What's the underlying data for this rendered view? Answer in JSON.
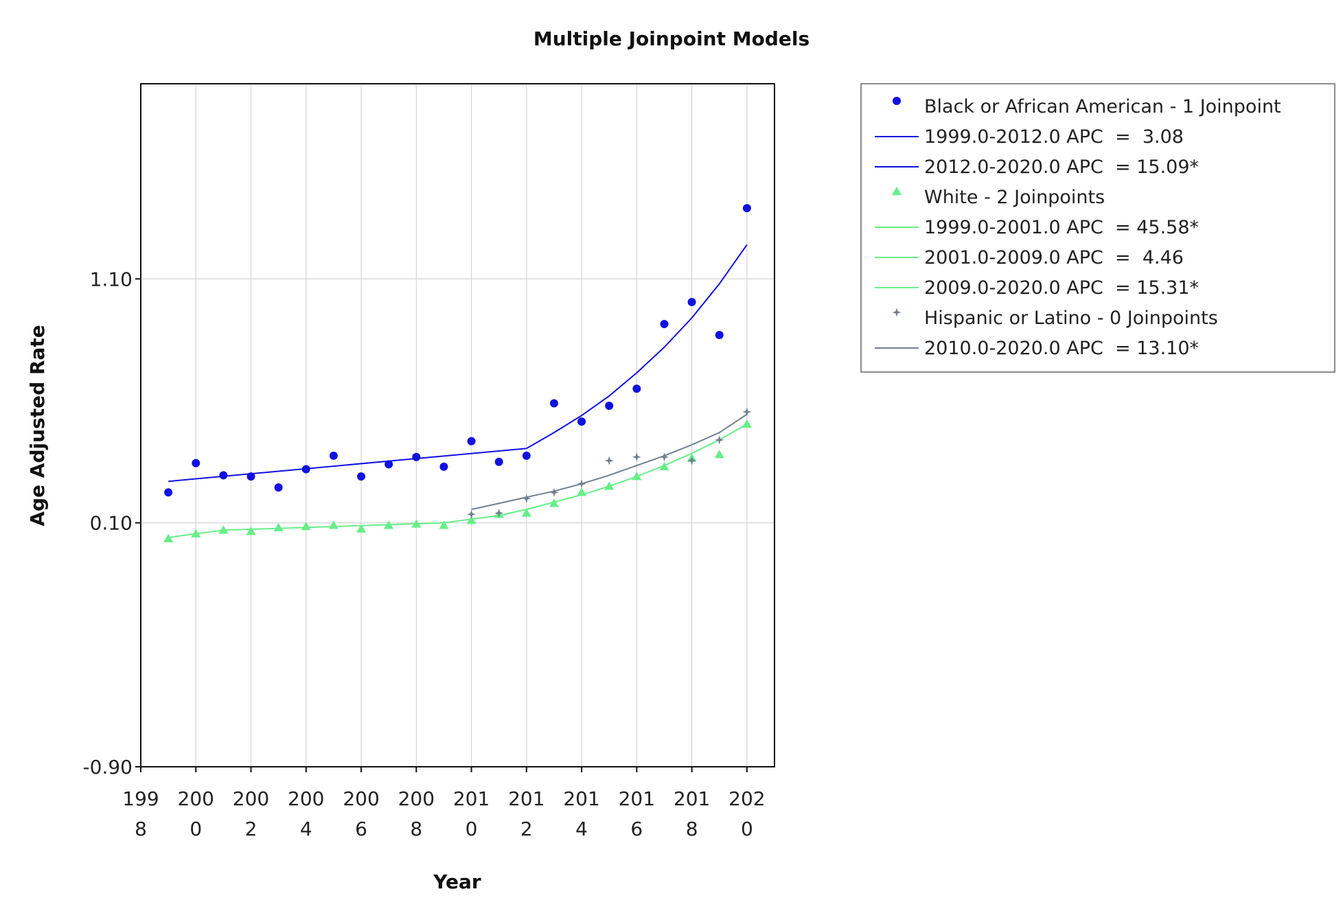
{
  "chart_data": {
    "type": "scatter",
    "title": "Multiple Joinpoint Models",
    "xlabel": "Year",
    "ylabel": "Age Adjusted Rate",
    "xlim": [
      1998,
      2021
    ],
    "ylim": [
      -0.9,
      1.9
    ],
    "x_ticks": [
      {
        "value": 1998,
        "line1": "199",
        "line2": "8"
      },
      {
        "value": 2000,
        "line1": "200",
        "line2": "0"
      },
      {
        "value": 2002,
        "line1": "200",
        "line2": "2"
      },
      {
        "value": 2004,
        "line1": "200",
        "line2": "4"
      },
      {
        "value": 2006,
        "line1": "200",
        "line2": "6"
      },
      {
        "value": 2008,
        "line1": "200",
        "line2": "8"
      },
      {
        "value": 2010,
        "line1": "201",
        "line2": "0"
      },
      {
        "value": 2012,
        "line1": "201",
        "line2": "2"
      },
      {
        "value": 2014,
        "line1": "201",
        "line2": "4"
      },
      {
        "value": 2016,
        "line1": "201",
        "line2": "6"
      },
      {
        "value": 2018,
        "line1": "201",
        "line2": "8"
      },
      {
        "value": 2020,
        "line1": "202",
        "line2": "0"
      }
    ],
    "y_ticks": [
      {
        "value": -0.9,
        "label": "-0.90"
      },
      {
        "value": 0.1,
        "label": "0.10"
      },
      {
        "value": 1.1,
        "label": "1.10"
      }
    ],
    "grid": true,
    "legend_position": "right",
    "series": [
      {
        "name": "Black or African American - 1 Joinpoint",
        "marker": "circle",
        "color": "#1010e0",
        "x": [
          1999,
          2000,
          2001,
          2002,
          2003,
          2004,
          2005,
          2006,
          2007,
          2008,
          2009,
          2010,
          2011,
          2012,
          2013,
          2014,
          2015,
          2016,
          2017,
          2018,
          2019,
          2020
        ],
        "y": [
          0.225,
          0.345,
          0.295,
          0.29,
          0.245,
          0.32,
          0.375,
          0.29,
          0.34,
          0.37,
          0.33,
          0.435,
          0.35,
          0.375,
          0.59,
          0.515,
          0.58,
          0.65,
          0.915,
          1.005,
          0.87,
          1.39
        ]
      },
      {
        "name": "White - 2 Joinpoints",
        "marker": "triangle",
        "color": "#66ee88",
        "x": [
          1999,
          2000,
          2001,
          2002,
          2003,
          2004,
          2005,
          2006,
          2007,
          2008,
          2009,
          2010,
          2011,
          2012,
          2013,
          2014,
          2015,
          2016,
          2017,
          2018,
          2019,
          2020
        ],
        "y": [
          0.035,
          0.055,
          0.07,
          0.065,
          0.08,
          0.085,
          0.09,
          0.075,
          0.09,
          0.095,
          0.09,
          0.11,
          0.135,
          0.14,
          0.18,
          0.225,
          0.25,
          0.29,
          0.33,
          0.365,
          0.38,
          0.505
        ]
      },
      {
        "name": "Hispanic or Latino - 0 Joinpoints",
        "marker": "star",
        "color": "#708090",
        "x": [
          2010,
          2011,
          2012,
          2013,
          2014,
          2015,
          2016,
          2017,
          2018,
          2019,
          2020
        ],
        "y": [
          0.135,
          0.14,
          0.2,
          0.225,
          0.26,
          0.355,
          0.37,
          0.37,
          0.355,
          0.44,
          0.555
        ]
      }
    ],
    "fitted_lines": [
      {
        "name": "1999.0-2012.0 APC  =  3.08",
        "color": "#1010e0",
        "x": [
          1999,
          2012
        ],
        "y": [
          0.27,
          0.405
        ]
      },
      {
        "name": "2012.0-2020.0 APC  = 15.09*",
        "color": "#1010e0",
        "x": [
          2012,
          2013,
          2014,
          2015,
          2016,
          2017,
          2018,
          2019,
          2020
        ],
        "y": [
          0.405,
          0.47,
          0.54,
          0.62,
          0.715,
          0.82,
          0.94,
          1.08,
          1.24
        ]
      },
      {
        "name": "1999.0-2001.0 APC  = 45.58*",
        "color": "#66ee88",
        "x": [
          1999,
          2000,
          2001
        ],
        "y": [
          0.04,
          0.055,
          0.07
        ]
      },
      {
        "name": "2001.0-2009.0 APC  =  4.46",
        "color": "#66ee88",
        "x": [
          2001,
          2009
        ],
        "y": [
          0.07,
          0.1
        ]
      },
      {
        "name": "2009.0-2020.0 APC  = 15.31*",
        "color": "#66ee88",
        "x": [
          2009,
          2010,
          2011,
          2012,
          2013,
          2014,
          2015,
          2016,
          2017,
          2018,
          2019,
          2020
        ],
        "y": [
          0.1,
          0.115,
          0.13,
          0.155,
          0.185,
          0.215,
          0.25,
          0.29,
          0.335,
          0.385,
          0.44,
          0.505
        ]
      },
      {
        "name": "2010.0-2020.0 APC  = 13.10*",
        "color": "#708090",
        "x": [
          2010,
          2011,
          2012,
          2013,
          2014,
          2015,
          2016,
          2017,
          2018,
          2019,
          2020
        ],
        "y": [
          0.155,
          0.18,
          0.205,
          0.23,
          0.26,
          0.295,
          0.335,
          0.375,
          0.42,
          0.47,
          0.545
        ]
      }
    ],
    "legend": [
      {
        "kind": "marker",
        "marker": "circle",
        "color": "#1010e0",
        "label": "Black or African American - 1 Joinpoint"
      },
      {
        "kind": "line",
        "color": "#1010e0",
        "label": "1999.0-2012.0 APC  =  3.08"
      },
      {
        "kind": "line",
        "color": "#1010e0",
        "label": "2012.0-2020.0 APC  = 15.09*"
      },
      {
        "kind": "marker",
        "marker": "triangle",
        "color": "#66ee88",
        "label": "White - 2 Joinpoints"
      },
      {
        "kind": "line",
        "color": "#66ee88",
        "label": "1999.0-2001.0 APC  = 45.58*"
      },
      {
        "kind": "line",
        "color": "#66ee88",
        "label": "2001.0-2009.0 APC  =  4.46"
      },
      {
        "kind": "line",
        "color": "#66ee88",
        "label": "2009.0-2020.0 APC  = 15.31*"
      },
      {
        "kind": "marker",
        "marker": "star",
        "color": "#708090",
        "label": "Hispanic or Latino - 0 Joinpoints"
      },
      {
        "kind": "line",
        "color": "#708090",
        "label": "2010.0-2020.0 APC  = 13.10*"
      }
    ]
  }
}
